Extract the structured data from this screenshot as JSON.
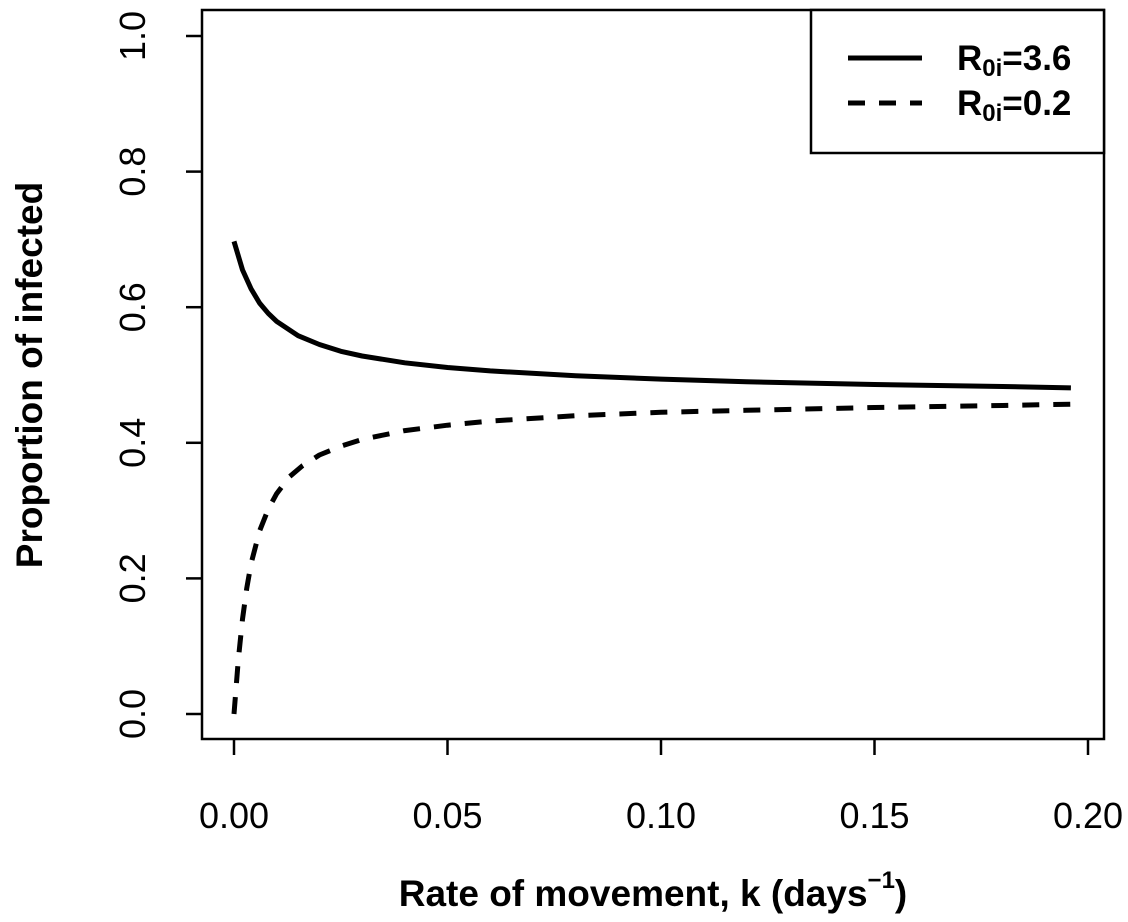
{
  "chart_data": {
    "type": "line",
    "xlabel": {
      "main": "Rate of movement, k (days",
      "superscript": "−1",
      "close": ")"
    },
    "ylabel": "Proportion of infected",
    "xlim": [
      0.0,
      0.2
    ],
    "ylim": [
      0.0,
      1.0
    ],
    "x_ticks": [
      "0.00",
      "0.05",
      "0.10",
      "0.15",
      "0.20"
    ],
    "y_ticks": [
      "0.0",
      "0.2",
      "0.4",
      "0.6",
      "0.8",
      "1.0"
    ],
    "grid": false,
    "legend_position": "top-right",
    "series": [
      {
        "label_main": "R",
        "label_sub": "0i",
        "label_rest": "=3.6",
        "style": "solid",
        "color": "#000000",
        "x": [
          0.0,
          0.002,
          0.004,
          0.006,
          0.008,
          0.01,
          0.015,
          0.02,
          0.025,
          0.03,
          0.04,
          0.05,
          0.06,
          0.08,
          0.1,
          0.12,
          0.15,
          0.18,
          0.196
        ],
        "y": [
          0.697,
          0.655,
          0.627,
          0.606,
          0.591,
          0.579,
          0.558,
          0.545,
          0.535,
          0.528,
          0.518,
          0.511,
          0.506,
          0.499,
          0.494,
          0.49,
          0.486,
          0.483,
          0.481
        ]
      },
      {
        "label_main": "R",
        "label_sub": "0i",
        "label_rest": "=0.2",
        "style": "dashed",
        "color": "#000000",
        "x": [
          0.0,
          0.001,
          0.002,
          0.003,
          0.004,
          0.006,
          0.008,
          0.01,
          0.013,
          0.016,
          0.02,
          0.025,
          0.03,
          0.04,
          0.05,
          0.06,
          0.08,
          0.1,
          0.12,
          0.15,
          0.18,
          0.196
        ],
        "y": [
          0.0,
          0.08,
          0.14,
          0.186,
          0.222,
          0.27,
          0.302,
          0.325,
          0.35,
          0.366,
          0.382,
          0.395,
          0.405,
          0.418,
          0.426,
          0.432,
          0.44,
          0.445,
          0.448,
          0.452,
          0.455,
          0.457
        ]
      }
    ]
  }
}
